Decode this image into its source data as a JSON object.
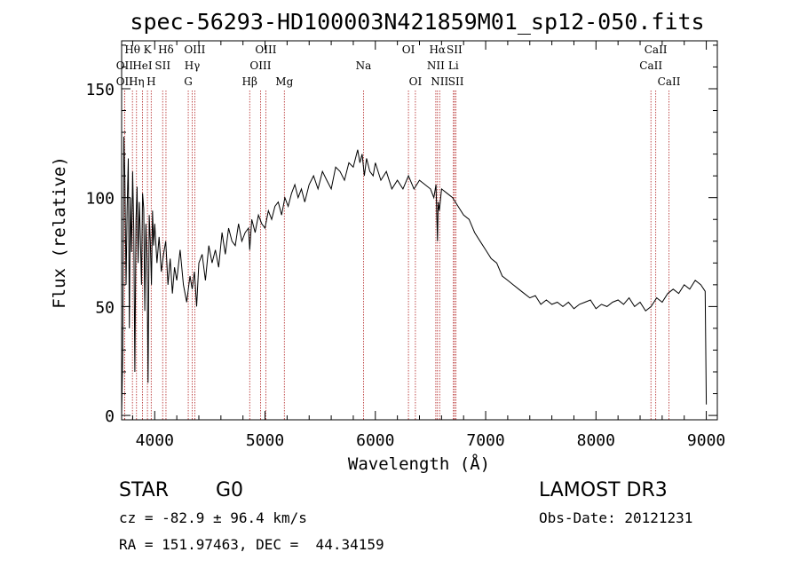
{
  "chart_data": {
    "type": "line",
    "title": "spec-56293-HD100003N421859M01_sp12-050.fits",
    "xlabel": "Wavelength (Å)",
    "ylabel": "Flux (relative)",
    "xlim": [
      3700,
      9100
    ],
    "ylim": [
      -2,
      172
    ],
    "xticks": [
      4000,
      5000,
      6000,
      7000,
      8000,
      9000
    ],
    "yticks": [
      0,
      50,
      100,
      150
    ],
    "grid": false,
    "series": [
      {
        "name": "flux",
        "x": [
          3700,
          3710,
          3720,
          3730,
          3740,
          3750,
          3760,
          3770,
          3780,
          3790,
          3800,
          3810,
          3820,
          3830,
          3840,
          3850,
          3860,
          3870,
          3880,
          3890,
          3900,
          3910,
          3920,
          3930,
          3940,
          3950,
          3960,
          3970,
          3980,
          3990,
          4000,
          4020,
          4040,
          4060,
          4080,
          4100,
          4120,
          4140,
          4160,
          4180,
          4200,
          4230,
          4260,
          4290,
          4320,
          4340,
          4360,
          4380,
          4400,
          4430,
          4460,
          4490,
          4520,
          4550,
          4580,
          4610,
          4640,
          4670,
          4700,
          4730,
          4760,
          4790,
          4820,
          4850,
          4861,
          4880,
          4910,
          4940,
          4970,
          5000,
          5030,
          5060,
          5090,
          5120,
          5150,
          5180,
          5210,
          5240,
          5270,
          5300,
          5330,
          5360,
          5400,
          5440,
          5480,
          5520,
          5560,
          5600,
          5640,
          5680,
          5720,
          5760,
          5800,
          5840,
          5860,
          5880,
          5900,
          5920,
          5950,
          5980,
          6000,
          6050,
          6100,
          6150,
          6200,
          6250,
          6300,
          6350,
          6400,
          6450,
          6500,
          6530,
          6550,
          6563,
          6570,
          6580,
          6600,
          6650,
          6700,
          6750,
          6800,
          6850,
          6900,
          6950,
          7000,
          7050,
          7100,
          7150,
          7200,
          7250,
          7300,
          7350,
          7400,
          7450,
          7500,
          7550,
          7600,
          7650,
          7700,
          7750,
          7800,
          7850,
          7900,
          7950,
          8000,
          8050,
          8100,
          8150,
          8200,
          8250,
          8300,
          8350,
          8400,
          8450,
          8500,
          8550,
          8600,
          8650,
          8700,
          8750,
          8800,
          8850,
          8900,
          8950,
          8990,
          9000
        ],
        "y": [
          0,
          28,
          128,
          108,
          60,
          95,
          118,
          40,
          100,
          75,
          112,
          85,
          20,
          90,
          105,
          70,
          98,
          82,
          60,
          102,
          95,
          48,
          88,
          72,
          15,
          92,
          80,
          60,
          94,
          78,
          88,
          70,
          82,
          66,
          74,
          80,
          60,
          72,
          56,
          68,
          62,
          76,
          60,
          52,
          64,
          58,
          66,
          50,
          70,
          74,
          62,
          78,
          70,
          76,
          68,
          84,
          74,
          86,
          80,
          78,
          88,
          80,
          84,
          86,
          76,
          90,
          84,
          92,
          88,
          86,
          94,
          90,
          96,
          98,
          92,
          100,
          96,
          102,
          106,
          100,
          104,
          98,
          106,
          110,
          104,
          112,
          108,
          104,
          114,
          112,
          108,
          116,
          114,
          122,
          116,
          120,
          110,
          118,
          112,
          110,
          116,
          108,
          112,
          104,
          108,
          104,
          110,
          104,
          108,
          106,
          104,
          100,
          106,
          80,
          98,
          94,
          104,
          102,
          100,
          96,
          92,
          90,
          84,
          80,
          76,
          72,
          70,
          64,
          62,
          60,
          58,
          56,
          54,
          55,
          51,
          53,
          51,
          52,
          50,
          52,
          49,
          51,
          52,
          53,
          49,
          51,
          50,
          52,
          53,
          51,
          54,
          50,
          52,
          48,
          50,
          54,
          52,
          56,
          58,
          56,
          60,
          58,
          62,
          60,
          57,
          5
        ]
      }
    ],
    "lines": [
      {
        "name": "OII",
        "wavelength": 3727,
        "row": 2
      },
      {
        "name": "Hθ",
        "wavelength": 3798,
        "row": 0
      },
      {
        "name": "OII",
        "wavelength": 3727,
        "row": 1
      },
      {
        "name": "Hη",
        "wavelength": 3835,
        "row": 2
      },
      {
        "name": "HeI",
        "wavelength": 3889,
        "row": 1
      },
      {
        "name": "K",
        "wavelength": 3934,
        "row": 0
      },
      {
        "name": "H",
        "wavelength": 3968,
        "row": 2
      },
      {
        "name": "SII",
        "wavelength": 4072,
        "row": 1
      },
      {
        "name": "Hδ",
        "wavelength": 4102,
        "row": 0
      },
      {
        "name": "OIII",
        "wavelength": 4363,
        "row": 0
      },
      {
        "name": "Hγ",
        "wavelength": 4340,
        "row": 1
      },
      {
        "name": "G",
        "wavelength": 4304,
        "row": 2
      },
      {
        "name": "Hβ",
        "wavelength": 4861,
        "row": 2
      },
      {
        "name": "OIII",
        "wavelength": 5007,
        "row": 0
      },
      {
        "name": "OIII",
        "wavelength": 4959,
        "row": 1
      },
      {
        "name": "Mg",
        "wavelength": 5175,
        "row": 2
      },
      {
        "name": "Na",
        "wavelength": 5893,
        "row": 1
      },
      {
        "name": "OI",
        "wavelength": 6300,
        "row": 0
      },
      {
        "name": "OI",
        "wavelength": 6363,
        "row": 2
      },
      {
        "name": "Hα",
        "wavelength": 6563,
        "row": 0
      },
      {
        "name": "NII",
        "wavelength": 6548,
        "row": 1
      },
      {
        "name": "NII",
        "wavelength": 6583,
        "row": 2
      },
      {
        "name": "SII",
        "wavelength": 6717,
        "row": 0
      },
      {
        "name": "Li",
        "wavelength": 6708,
        "row": 1
      },
      {
        "name": "SII",
        "wavelength": 6731,
        "row": 2
      },
      {
        "name": "CaII",
        "wavelength": 8542,
        "row": 0
      },
      {
        "name": "CaII",
        "wavelength": 8498,
        "row": 1
      },
      {
        "name": "CaII",
        "wavelength": 8662,
        "row": 2
      }
    ]
  },
  "info": {
    "object_class": "STAR",
    "subclass": "G0",
    "survey": "LAMOST DR3",
    "cz_text": "cz = -82.9 ± 96.4 km/s",
    "obs_date_text": "Obs-Date: 20121231",
    "coords_text": "RA = 151.97463, DEC =  44.34159"
  },
  "colors": {
    "spectrum": "#000000",
    "line_markers": "#b22222",
    "axes": "#000000"
  }
}
